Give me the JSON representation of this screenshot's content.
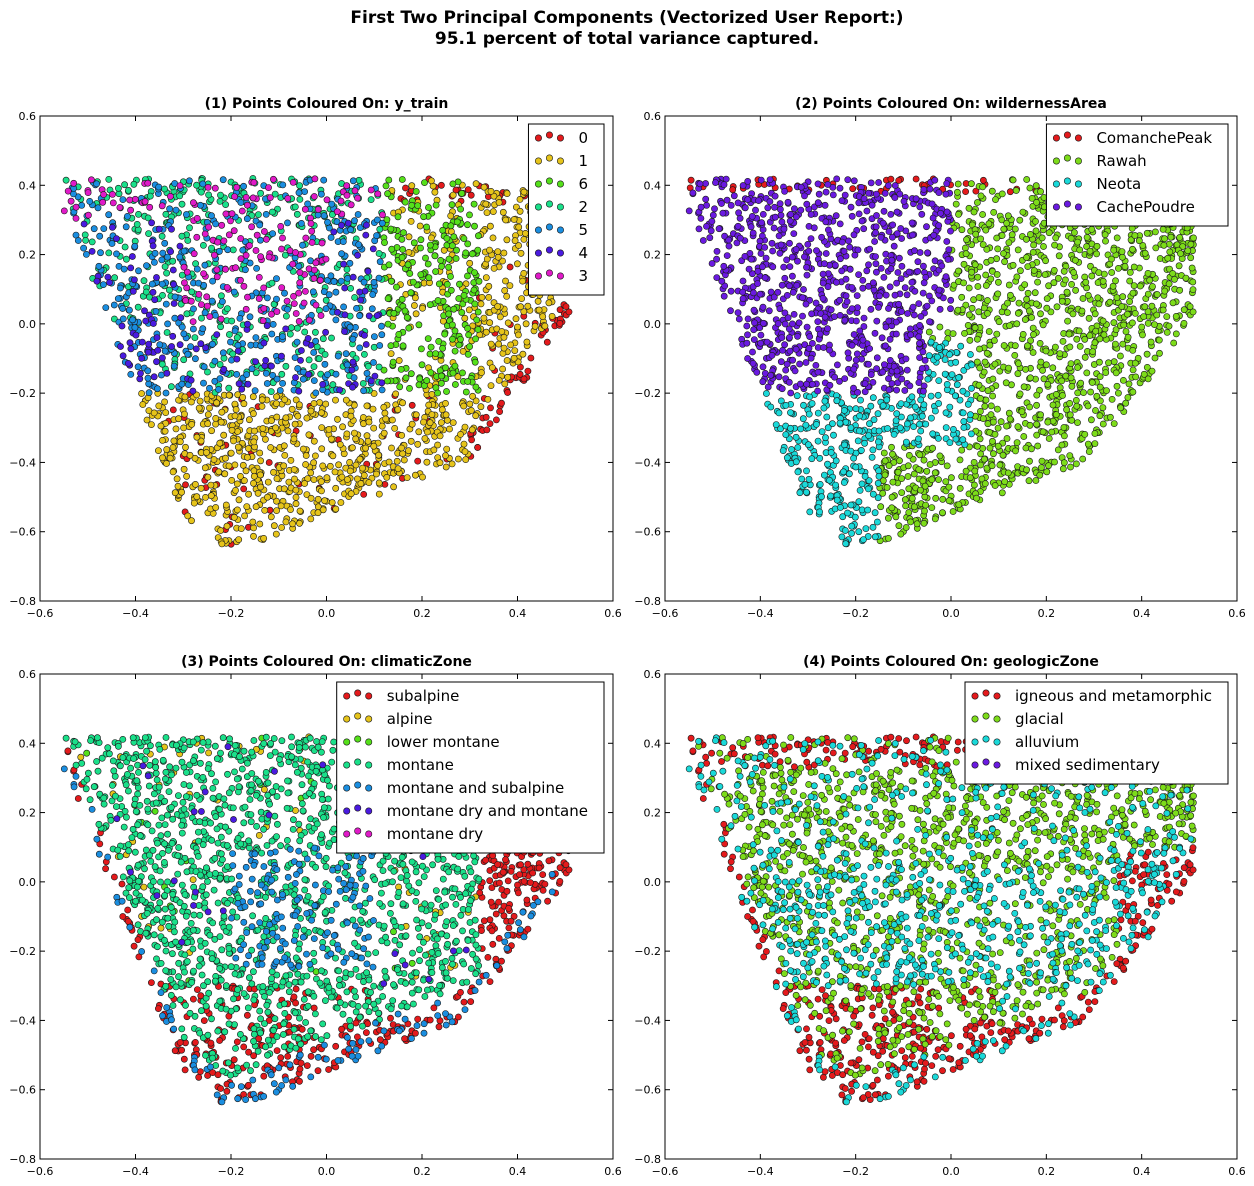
{
  "figure": {
    "title_line1": "First Two Principal Components (Vectorized User Report:)",
    "title_line2": "95.1 percent of total variance captured."
  },
  "chart_data": [
    {
      "type": "scatter",
      "title": "(1) Points Coloured On: y_train",
      "xlim": [
        -0.6,
        0.6
      ],
      "ylim": [
        -0.8,
        0.6
      ],
      "xticks": [
        -0.6,
        -0.4,
        -0.2,
        0.0,
        0.2,
        0.4,
        0.6
      ],
      "yticks": [
        -0.8,
        -0.6,
        -0.4,
        -0.2,
        0.0,
        0.2,
        0.4,
        0.6
      ],
      "legend_position": "top-right",
      "series": [
        {
          "name": "0",
          "color": "#e41a1c",
          "region": "lower-right-edge"
        },
        {
          "name": "1",
          "color": "#e6c41a",
          "region": "right-and-bottom"
        },
        {
          "name": "6",
          "color": "#55e01a",
          "region": "center-right"
        },
        {
          "name": "2",
          "color": "#1ae08a",
          "region": "upper-left"
        },
        {
          "name": "5",
          "color": "#1a8ee0",
          "region": "upper-left-center"
        },
        {
          "name": "4",
          "color": "#4a1ae0",
          "region": "left-cluster"
        },
        {
          "name": "3",
          "color": "#e01ac8",
          "region": "upper-center"
        }
      ]
    },
    {
      "type": "scatter",
      "title": "(2) Points Coloured On: wildernessArea",
      "xlim": [
        -0.6,
        0.6
      ],
      "ylim": [
        -0.8,
        0.6
      ],
      "xticks": [
        -0.6,
        -0.4,
        -0.2,
        0.0,
        0.2,
        0.4,
        0.6
      ],
      "yticks": [
        -0.8,
        -0.6,
        -0.4,
        -0.2,
        0.0,
        0.2,
        0.4,
        0.6
      ],
      "legend_position": "top-right",
      "series": [
        {
          "name": "ComanchePeak",
          "color": "#e41a1c",
          "region": "top-edge"
        },
        {
          "name": "Rawah",
          "color": "#7ddc1a",
          "region": "right-bulk"
        },
        {
          "name": "Neota",
          "color": "#1ad9d9",
          "region": "lower-left"
        },
        {
          "name": "CachePoudre",
          "color": "#6a1ae0",
          "region": "upper-left"
        }
      ]
    },
    {
      "type": "scatter",
      "title": "(3) Points Coloured On: climaticZone",
      "xlim": [
        -0.6,
        0.6
      ],
      "ylim": [
        -0.8,
        0.6
      ],
      "xticks": [
        -0.6,
        -0.4,
        -0.2,
        0.0,
        0.2,
        0.4,
        0.6
      ],
      "yticks": [
        -0.8,
        -0.6,
        -0.4,
        -0.2,
        0.0,
        0.2,
        0.4,
        0.6
      ],
      "legend_position": "top-right",
      "series": [
        {
          "name": "subalpine",
          "color": "#e41a1c",
          "region": "bottom-and-right"
        },
        {
          "name": "alpine",
          "color": "#e6c41a",
          "region": "sparse"
        },
        {
          "name": "lower montane",
          "color": "#55e01a",
          "region": "sparse"
        },
        {
          "name": "montane",
          "color": "#1ae08a",
          "region": "bulk"
        },
        {
          "name": "montane and subalpine",
          "color": "#1a8ee0",
          "region": "center-and-bottom"
        },
        {
          "name": "montane dry and montane",
          "color": "#4a1ae0",
          "region": "sparse"
        },
        {
          "name": "montane dry",
          "color": "#e01ac8",
          "region": "sparse"
        }
      ]
    },
    {
      "type": "scatter",
      "title": "(4) Points Coloured On: geologicZone",
      "xlim": [
        -0.6,
        0.6
      ],
      "ylim": [
        -0.8,
        0.6
      ],
      "xticks": [
        -0.6,
        -0.4,
        -0.2,
        0.0,
        0.2,
        0.4,
        0.6
      ],
      "yticks": [
        -0.8,
        -0.6,
        -0.4,
        -0.2,
        0.0,
        0.2,
        0.4,
        0.6
      ],
      "legend_position": "top-right",
      "series": [
        {
          "name": "igneous and metamorphic",
          "color": "#e41a1c",
          "region": "edges-and-bottom"
        },
        {
          "name": "glacial",
          "color": "#7ddc1a",
          "region": "bulk"
        },
        {
          "name": "alluvium",
          "color": "#1ad9d9",
          "region": "center-band"
        },
        {
          "name": "mixed sedimentary",
          "color": "#6a1ae0",
          "region": "sparse"
        }
      ]
    }
  ]
}
